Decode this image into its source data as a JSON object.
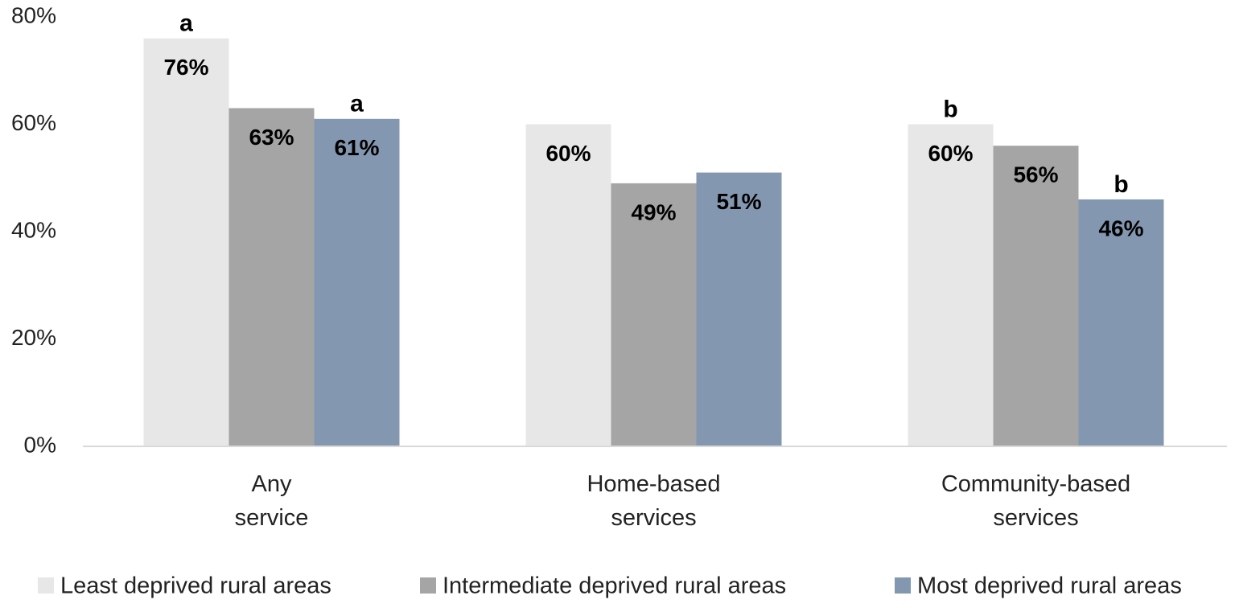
{
  "chart_data": {
    "type": "bar",
    "categories": [
      "Any service",
      "Home-based services",
      "Community-based services"
    ],
    "series": [
      {
        "name": "Least deprived rural areas",
        "color": "#e7e7e7",
        "values": [
          76,
          60,
          60
        ],
        "value_labels": [
          "76%",
          "60%",
          "60%"
        ],
        "annotation_labels": [
          "a",
          null,
          "b"
        ]
      },
      {
        "name": "Intermediate deprived rural areas",
        "color": "#a5a5a5",
        "values": [
          63,
          49,
          56
        ],
        "value_labels": [
          "63%",
          "49%",
          "56%"
        ],
        "annotation_labels": [
          null,
          null,
          null
        ]
      },
      {
        "name": "Most deprived rural areas",
        "color": "#8497b0",
        "values": [
          61,
          51,
          46
        ],
        "value_labels": [
          "61%",
          "51%",
          "46%"
        ],
        "annotation_labels": [
          "a",
          null,
          "b"
        ]
      }
    ],
    "ylim": [
      0,
      80
    ],
    "yticks": [
      {
        "value": 0,
        "label": "0%"
      },
      {
        "value": 20,
        "label": "20%"
      },
      {
        "value": 40,
        "label": "40%"
      },
      {
        "value": 60,
        "label": "60%"
      },
      {
        "value": 80,
        "label": "80%"
      }
    ],
    "grid": false,
    "legend": "bottom"
  }
}
